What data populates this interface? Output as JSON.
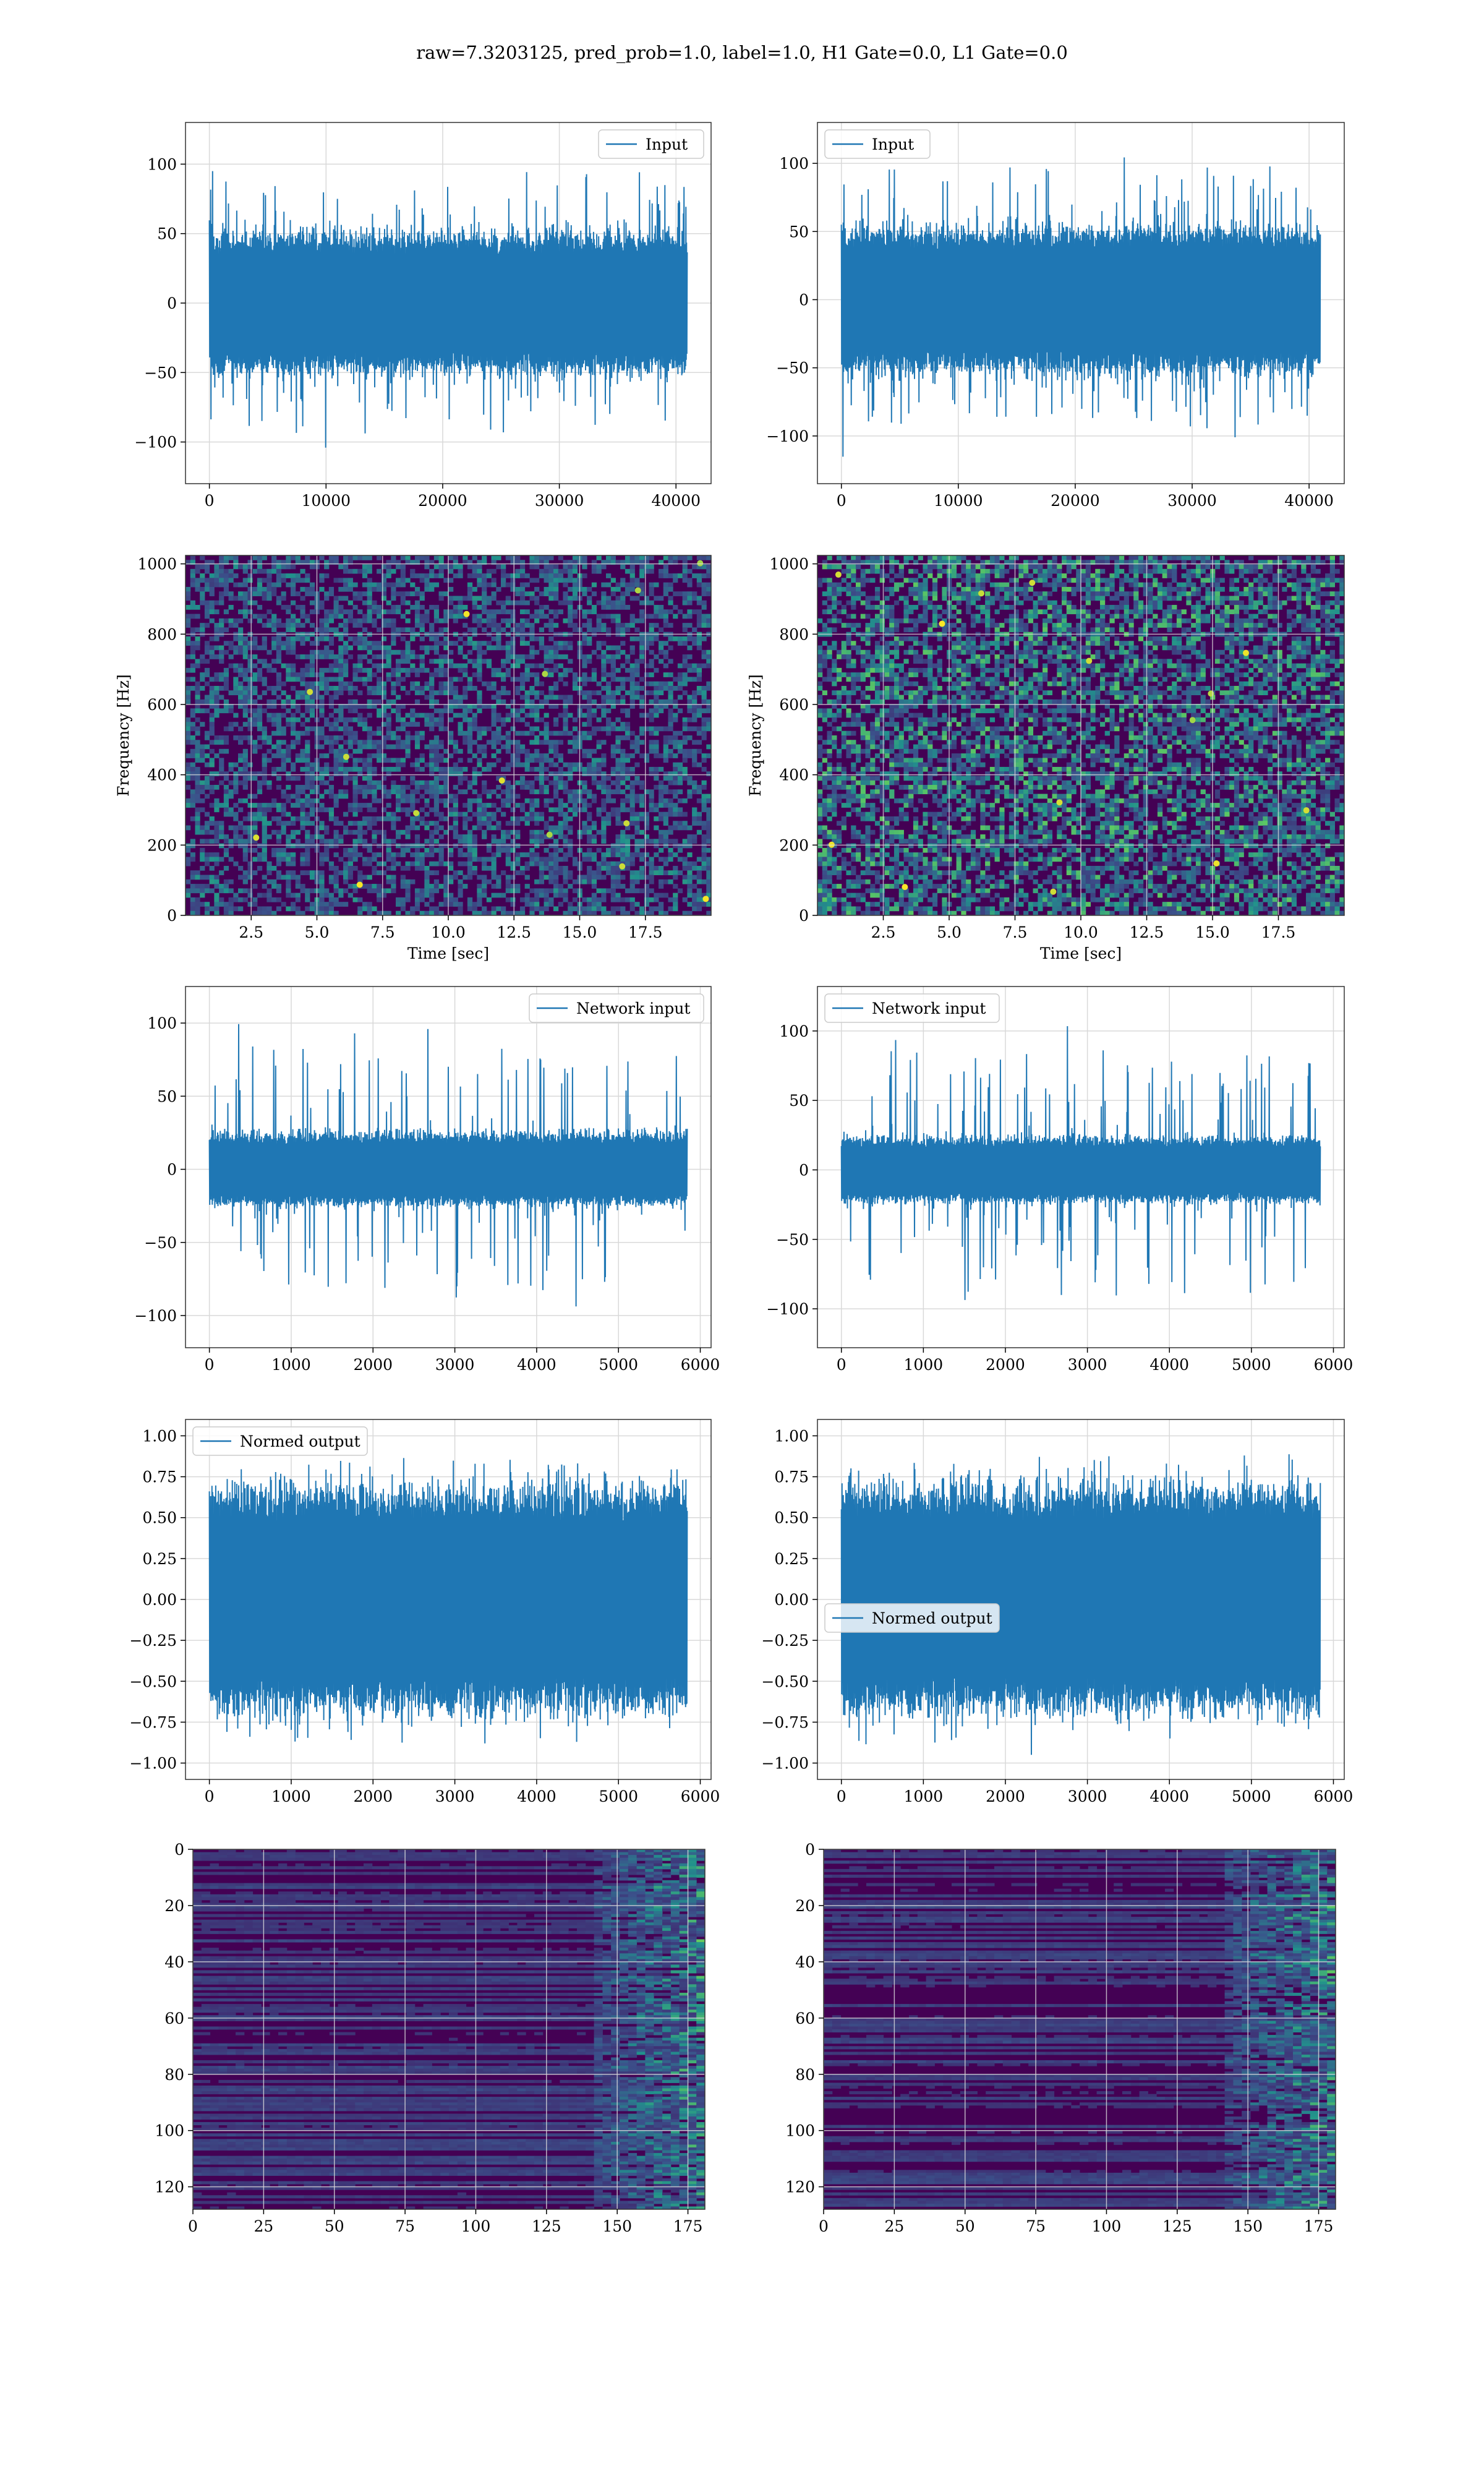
{
  "figure": {
    "title": "raw=7.3203125, pred_prob=1.0, label=1.0, H1 Gate=0.0, L1 Gate=0.0"
  },
  "colors": {
    "line": "#1f77b4",
    "grid": "#d9d9d9",
    "image_grid": "#dddddd",
    "viridis_low": "#440154",
    "viridis_mid": "#21918c",
    "viridis_high": "#fde725"
  },
  "chart_data": [
    {
      "id": "input-h1",
      "type": "line",
      "style": "noise-band",
      "series": [
        {
          "name": "Input"
        }
      ],
      "legend": "top-right",
      "grid": true,
      "x_range": [
        0,
        40960
      ],
      "xlim": [
        -2048,
        43008
      ],
      "ylim": [
        -130,
        130
      ],
      "noise": {
        "core": 65,
        "peak": 118
      },
      "xticks": [
        0,
        10000,
        20000,
        30000,
        40000
      ],
      "xtick_labels": [
        "0",
        "10000",
        "20000",
        "30000",
        "40000"
      ],
      "yticks": [
        100,
        50,
        0,
        -50,
        -100
      ],
      "ytick_labels": [
        "100",
        "50",
        "0",
        "−50",
        "−100"
      ],
      "xlabel": "",
      "ylabel": ""
    },
    {
      "id": "input-l1",
      "type": "line",
      "style": "noise-band",
      "series": [
        {
          "name": "Input"
        }
      ],
      "legend": "top-left",
      "grid": true,
      "x_range": [
        0,
        40960
      ],
      "xlim": [
        -2048,
        43008
      ],
      "ylim": [
        -135,
        130
      ],
      "noise": {
        "core": 68,
        "peak": 122
      },
      "xticks": [
        0,
        10000,
        20000,
        30000,
        40000
      ],
      "xtick_labels": [
        "0",
        "10000",
        "20000",
        "30000",
        "40000"
      ],
      "yticks": [
        100,
        50,
        0,
        -50,
        -100
      ],
      "ytick_labels": [
        "100",
        "50",
        "0",
        "−50",
        "−100"
      ],
      "xlabel": "",
      "ylabel": ""
    },
    {
      "id": "spec-h1",
      "type": "heatmap",
      "style": "spectrogram",
      "grid": true,
      "colormap": "viridis",
      "xlim": [
        0,
        20
      ],
      "ylim": [
        0,
        1024
      ],
      "intensity": 0.55,
      "xticks": [
        2.5,
        5.0,
        7.5,
        10.0,
        12.5,
        15.0,
        17.5
      ],
      "xtick_labels": [
        "2.5",
        "5.0",
        "7.5",
        "10.0",
        "12.5",
        "15.0",
        "17.5"
      ],
      "yticks": [
        0,
        200,
        400,
        600,
        800,
        1000
      ],
      "ytick_labels": [
        "0",
        "200",
        "400",
        "600",
        "800",
        "1000"
      ],
      "xlabel": "Time [sec]",
      "ylabel": "Frequency [Hz]"
    },
    {
      "id": "spec-l1",
      "type": "heatmap",
      "style": "spectrogram",
      "grid": true,
      "colormap": "viridis",
      "xlim": [
        0,
        20
      ],
      "ylim": [
        0,
        1024
      ],
      "intensity": 0.85,
      "xticks": [
        2.5,
        5.0,
        7.5,
        10.0,
        12.5,
        15.0,
        17.5
      ],
      "xtick_labels": [
        "2.5",
        "5.0",
        "7.5",
        "10.0",
        "12.5",
        "15.0",
        "17.5"
      ],
      "yticks": [
        0,
        200,
        400,
        600,
        800,
        1000
      ],
      "ytick_labels": [
        "0",
        "200",
        "400",
        "600",
        "800",
        "1000"
      ],
      "xlabel": "Time [sec]",
      "ylabel": "Frequency [Hz]"
    },
    {
      "id": "netin-h1",
      "type": "line",
      "style": "noise-band",
      "series": [
        {
          "name": "Network input"
        }
      ],
      "legend": "top-right",
      "grid": true,
      "x_range": [
        0,
        5840
      ],
      "xlim": [
        -292,
        6132
      ],
      "ylim": [
        -122,
        125
      ],
      "noise": {
        "core": 32,
        "peak": 112
      },
      "xticks": [
        0,
        1000,
        2000,
        3000,
        4000,
        5000,
        6000
      ],
      "xtick_labels": [
        "0",
        "1000",
        "2000",
        "3000",
        "4000",
        "5000",
        "6000"
      ],
      "yticks": [
        100,
        50,
        0,
        -50,
        -100
      ],
      "ytick_labels": [
        "100",
        "50",
        "0",
        "−50",
        "−100"
      ],
      "xlabel": "",
      "ylabel": ""
    },
    {
      "id": "netin-l1",
      "type": "line",
      "style": "noise-band",
      "series": [
        {
          "name": "Network input"
        }
      ],
      "legend": "top-left",
      "grid": true,
      "x_range": [
        0,
        5840
      ],
      "xlim": [
        -292,
        6132
      ],
      "ylim": [
        -128,
        132
      ],
      "noise": {
        "core": 30,
        "peak": 118
      },
      "xticks": [
        0,
        1000,
        2000,
        3000,
        4000,
        5000,
        6000
      ],
      "xtick_labels": [
        "0",
        "1000",
        "2000",
        "3000",
        "4000",
        "5000",
        "6000"
      ],
      "yticks": [
        100,
        50,
        0,
        -50,
        -100
      ],
      "ytick_labels": [
        "100",
        "50",
        "0",
        "−50",
        "−100"
      ],
      "xlabel": "",
      "ylabel": ""
    },
    {
      "id": "normed-h1",
      "type": "line",
      "style": "noise-band",
      "series": [
        {
          "name": "Normed output"
        }
      ],
      "legend": "top-left",
      "grid": true,
      "x_range": [
        0,
        5840
      ],
      "xlim": [
        -292,
        6132
      ],
      "ylim": [
        -1.1,
        1.1
      ],
      "noise": {
        "core": 0.88,
        "peak": 1.0
      },
      "xticks": [
        0,
        1000,
        2000,
        3000,
        4000,
        5000,
        6000
      ],
      "xtick_labels": [
        "0",
        "1000",
        "2000",
        "3000",
        "4000",
        "5000",
        "6000"
      ],
      "yticks": [
        1.0,
        0.75,
        0.5,
        0.25,
        0.0,
        -0.25,
        -0.5,
        -0.75,
        -1.0
      ],
      "ytick_labels": [
        "1.00",
        "0.75",
        "0.50",
        "0.25",
        "0.00",
        "−0.25",
        "−0.50",
        "−0.75",
        "−1.00"
      ],
      "xlabel": "",
      "ylabel": ""
    },
    {
      "id": "normed-l1",
      "type": "line",
      "style": "noise-band",
      "series": [
        {
          "name": "Normed output"
        }
      ],
      "legend": "center-left",
      "grid": true,
      "x_range": [
        0,
        5840
      ],
      "xlim": [
        -292,
        6132
      ],
      "ylim": [
        -1.1,
        1.1
      ],
      "noise": {
        "core": 0.88,
        "peak": 1.0
      },
      "xticks": [
        0,
        1000,
        2000,
        3000,
        4000,
        5000,
        6000
      ],
      "xtick_labels": [
        "0",
        "1000",
        "2000",
        "3000",
        "4000",
        "5000",
        "6000"
      ],
      "yticks": [
        1.0,
        0.75,
        0.5,
        0.25,
        0.0,
        -0.25,
        -0.5,
        -0.75,
        -1.0
      ],
      "ytick_labels": [
        "1.00",
        "0.75",
        "0.50",
        "0.25",
        "0.00",
        "−0.25",
        "−0.50",
        "−0.75",
        "−1.00"
      ],
      "xlabel": "",
      "ylabel": ""
    },
    {
      "id": "feat-h1",
      "type": "heatmap",
      "style": "feature-map",
      "grid": true,
      "colormap": "viridis",
      "xlim": [
        0,
        181
      ],
      "ylim": [
        128,
        0
      ],
      "y_inverted": true,
      "xticks": [
        0,
        25,
        50,
        75,
        100,
        125,
        150,
        175
      ],
      "xtick_labels": [
        "0",
        "25",
        "50",
        "75",
        "100",
        "125",
        "150",
        "175"
      ],
      "yticks": [
        0,
        20,
        40,
        60,
        80,
        100,
        120
      ],
      "ytick_labels": [
        "0",
        "20",
        "40",
        "60",
        "80",
        "100",
        "120"
      ],
      "xlabel": "",
      "ylabel": ""
    },
    {
      "id": "feat-l1",
      "type": "heatmap",
      "style": "feature-map",
      "grid": true,
      "colormap": "viridis",
      "xlim": [
        0,
        181
      ],
      "ylim": [
        128,
        0
      ],
      "y_inverted": true,
      "xticks": [
        0,
        25,
        50,
        75,
        100,
        125,
        150,
        175
      ],
      "xtick_labels": [
        "0",
        "25",
        "50",
        "75",
        "100",
        "125",
        "150",
        "175"
      ],
      "yticks": [
        0,
        20,
        40,
        60,
        80,
        100,
        120
      ],
      "ytick_labels": [
        "0",
        "20",
        "40",
        "60",
        "80",
        "100",
        "120"
      ],
      "xlabel": "",
      "ylabel": ""
    }
  ]
}
